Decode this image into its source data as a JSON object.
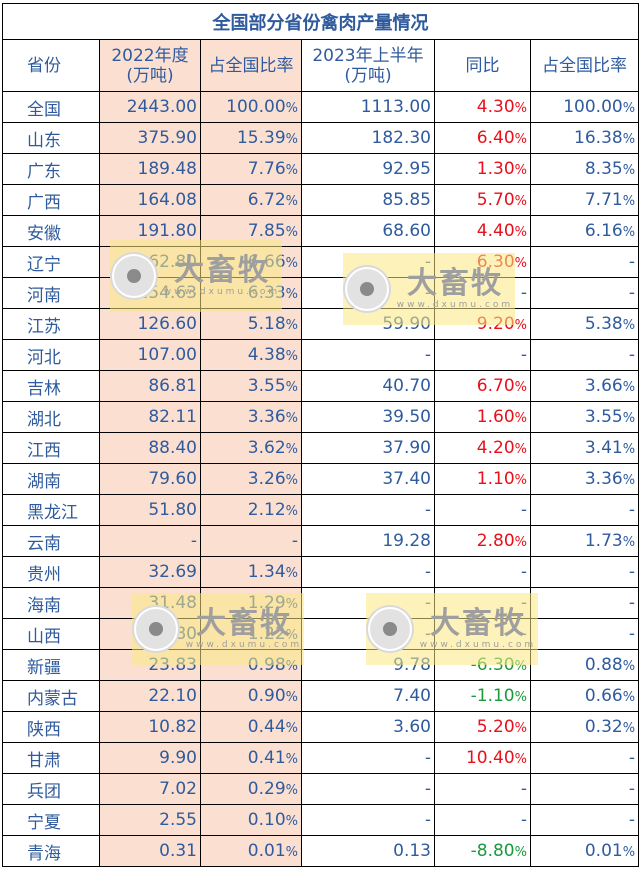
{
  "title": "全国部分省份禽肉产量情况",
  "headers": {
    "province": "省份",
    "y2022_line1": "2022年度",
    "y2022_line2": "(万吨)",
    "share2022": "占全国比率",
    "h2023_line1": "2023年上半年",
    "h2023_line2": "(万吨)",
    "yoy": "同比",
    "share2023": "占全国比率"
  },
  "rows": [
    {
      "province": "全国",
      "y2022": "2443.00",
      "share2022": "100.00",
      "h2023": "1113.00",
      "yoy": "4.30",
      "share2023": "100.00"
    },
    {
      "province": "山东",
      "y2022": "375.90",
      "share2022": "15.39",
      "h2023": "182.30",
      "yoy": "6.40",
      "share2023": "16.38"
    },
    {
      "province": "广东",
      "y2022": "189.48",
      "share2022": "7.76",
      "h2023": "92.95",
      "yoy": "1.30",
      "share2023": "8.35"
    },
    {
      "province": "广西",
      "y2022": "164.08",
      "share2022": "6.72",
      "h2023": "85.85",
      "yoy": "5.70",
      "share2023": "7.71"
    },
    {
      "province": "安徽",
      "y2022": "191.80",
      "share2022": "7.85",
      "h2023": "68.60",
      "yoy": "4.40",
      "share2023": "6.16"
    },
    {
      "province": "辽宁",
      "y2022": "162.80",
      "share2022": "6.66",
      "h2023": "-",
      "yoy": "6.30",
      "share2023": "-"
    },
    {
      "province": "河南",
      "y2022": "154.63",
      "share2022": "6.33",
      "h2023": "-",
      "yoy": "-",
      "share2023": "-"
    },
    {
      "province": "江苏",
      "y2022": "126.60",
      "share2022": "5.18",
      "h2023": "59.90",
      "yoy": "9.20",
      "share2023": "5.38"
    },
    {
      "province": "河北",
      "y2022": "107.00",
      "share2022": "4.38",
      "h2023": "-",
      "yoy": "-",
      "share2023": "-"
    },
    {
      "province": "吉林",
      "y2022": "86.81",
      "share2022": "3.55",
      "h2023": "40.70",
      "yoy": "6.70",
      "share2023": "3.66"
    },
    {
      "province": "湖北",
      "y2022": "82.11",
      "share2022": "3.36",
      "h2023": "39.50",
      "yoy": "1.60",
      "share2023": "3.55"
    },
    {
      "province": "江西",
      "y2022": "88.40",
      "share2022": "3.62",
      "h2023": "37.90",
      "yoy": "4.20",
      "share2023": "3.41"
    },
    {
      "province": "湖南",
      "y2022": "79.60",
      "share2022": "3.26",
      "h2023": "37.40",
      "yoy": "1.10",
      "share2023": "3.36"
    },
    {
      "province": "黑龙江",
      "y2022": "51.80",
      "share2022": "2.12",
      "h2023": "-",
      "yoy": "-",
      "share2023": "-"
    },
    {
      "province": "云南",
      "y2022": "-",
      "share2022": "-",
      "h2023": "19.28",
      "yoy": "2.80",
      "share2023": "1.73"
    },
    {
      "province": "贵州",
      "y2022": "32.69",
      "share2022": "1.34",
      "h2023": "-",
      "yoy": "-",
      "share2023": "-"
    },
    {
      "province": "海南",
      "y2022": "31.48",
      "share2022": "1.29",
      "h2023": "-",
      "yoy": "-",
      "share2023": "-"
    },
    {
      "province": "山西",
      "y2022": "29.80",
      "share2022": "1.22",
      "h2023": "-",
      "yoy": "-",
      "share2023": "-"
    },
    {
      "province": "新疆",
      "y2022": "23.83",
      "share2022": "0.98",
      "h2023": "9.78",
      "yoy": "-6.30",
      "share2023": "0.88"
    },
    {
      "province": "内蒙古",
      "y2022": "22.10",
      "share2022": "0.90",
      "h2023": "7.40",
      "yoy": "-1.10",
      "share2023": "0.66"
    },
    {
      "province": "陕西",
      "y2022": "10.82",
      "share2022": "0.44",
      "h2023": "3.60",
      "yoy": "5.20",
      "share2023": "0.32"
    },
    {
      "province": "甘肃",
      "y2022": "9.90",
      "share2022": "0.41",
      "h2023": "-",
      "yoy": "10.40",
      "share2023": "-"
    },
    {
      "province": "兵团",
      "y2022": "7.02",
      "share2022": "0.29",
      "h2023": "-",
      "yoy": "-",
      "share2023": "-"
    },
    {
      "province": "宁夏",
      "y2022": "2.55",
      "share2022": "0.10",
      "h2023": "-",
      "yoy": "-",
      "share2023": "-"
    },
    {
      "province": "青海",
      "y2022": "0.31",
      "share2022": "0.01",
      "h2023": "0.13",
      "yoy": "-8.80",
      "share2023": "0.01"
    }
  ],
  "watermark": {
    "name": "大畜牧",
    "url": "www.dxumu.com"
  },
  "colors": {
    "text": "#2f5b9e",
    "positive": "#e8101a",
    "negative": "#1b9a3b",
    "highlight": "#fbe0d2",
    "watermark_bg": "#fae782"
  }
}
